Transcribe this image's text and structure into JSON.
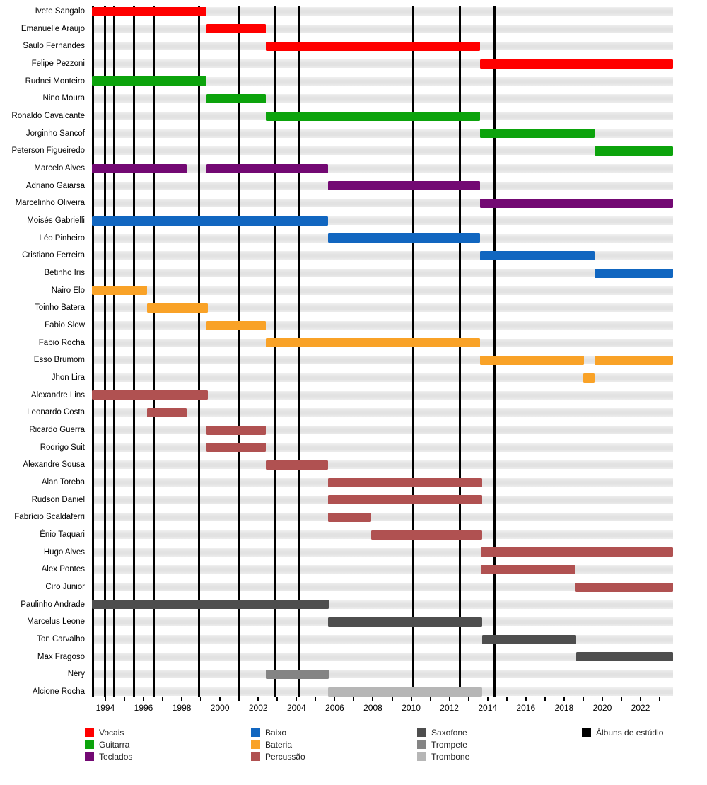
{
  "chart_data": {
    "type": "timeline",
    "title": "",
    "axis": {
      "start": 1993.3,
      "end": 2023.7,
      "label_years": [
        1994,
        1996,
        1998,
        2000,
        2002,
        2004,
        2006,
        2008,
        2010,
        2012,
        2014,
        2016,
        2018,
        2020,
        2022
      ],
      "minor_tick_first": 1994,
      "minor_tick_last": 2023,
      "grid": "horizontal-bands"
    },
    "album_lines_years": [
      1993.35,
      1994.0,
      1994.45,
      1995.5,
      1996.55,
      1998.9,
      2001.0,
      2002.9,
      2004.15,
      2010.1,
      2012.55,
      2014.35
    ],
    "roles": {
      "vocals": {
        "label": "Vocais",
        "color": "#ff0000"
      },
      "guitar": {
        "label": "Guitarra",
        "color": "#0ca30c"
      },
      "keyboards": {
        "label": "Teclados",
        "color": "#730973"
      },
      "bass": {
        "label": "Baixo",
        "color": "#1166c0"
      },
      "drums": {
        "label": "Bateria",
        "color": "#f9a227"
      },
      "percussion": {
        "label": "Percussão",
        "color": "#b05151"
      },
      "sax": {
        "label": "Saxofone",
        "color": "#4e4e4e"
      },
      "trumpet": {
        "label": "Trompete",
        "color": "#848484"
      },
      "trombone": {
        "label": "Trombone",
        "color": "#b6b6b6"
      },
      "albums": {
        "label": "Álbuns de estúdio",
        "color": "#000000"
      }
    },
    "members": [
      {
        "name": "Ivete Sangalo",
        "role": "vocals",
        "segments": [
          [
            1993.3,
            1999.3
          ]
        ]
      },
      {
        "name": "Emanuelle Araújo",
        "role": "vocals",
        "segments": [
          [
            1999.3,
            2002.4
          ]
        ]
      },
      {
        "name": "Saulo Fernandes",
        "role": "vocals",
        "segments": [
          [
            2002.4,
            2013.6
          ]
        ]
      },
      {
        "name": "Felipe Pezzoni",
        "role": "vocals",
        "segments": [
          [
            2013.6,
            2023.7
          ]
        ]
      },
      {
        "name": "Rudnei Monteiro",
        "role": "guitar",
        "segments": [
          [
            1993.3,
            1999.3
          ]
        ]
      },
      {
        "name": "Nino Moura",
        "role": "guitar",
        "segments": [
          [
            1999.3,
            2002.4
          ]
        ]
      },
      {
        "name": "Ronaldo Cavalcante",
        "role": "guitar",
        "segments": [
          [
            2002.4,
            2013.6
          ]
        ]
      },
      {
        "name": "Jorginho Sancof",
        "role": "guitar",
        "segments": [
          [
            2013.6,
            2019.6
          ]
        ]
      },
      {
        "name": "Peterson Figueiredo",
        "role": "guitar",
        "segments": [
          [
            2019.6,
            2023.7
          ]
        ]
      },
      {
        "name": "Marcelo Alves",
        "role": "keyboards",
        "segments": [
          [
            1993.3,
            1998.25
          ],
          [
            1999.3,
            2005.65
          ]
        ]
      },
      {
        "name": "Adriano Gaiarsa",
        "role": "keyboards",
        "segments": [
          [
            2005.65,
            2013.6
          ]
        ]
      },
      {
        "name": "Marcelinho Oliveira",
        "role": "keyboards",
        "segments": [
          [
            2013.6,
            2023.7
          ]
        ]
      },
      {
        "name": "Moisés Gabrielli",
        "role": "bass",
        "segments": [
          [
            1993.3,
            2005.65
          ]
        ]
      },
      {
        "name": "Léo Pinheiro",
        "role": "bass",
        "segments": [
          [
            2005.65,
            2013.6
          ]
        ]
      },
      {
        "name": "Cristiano Ferreira",
        "role": "bass",
        "segments": [
          [
            2013.6,
            2019.6
          ]
        ]
      },
      {
        "name": "Betinho Iris",
        "role": "bass",
        "segments": [
          [
            2019.6,
            2023.7
          ]
        ]
      },
      {
        "name": "Nairo Elo",
        "role": "drums",
        "segments": [
          [
            1993.3,
            1996.2
          ]
        ]
      },
      {
        "name": "Toinho Batera",
        "role": "drums",
        "segments": [
          [
            1996.2,
            1999.35
          ]
        ]
      },
      {
        "name": "Fabio Slow",
        "role": "drums",
        "segments": [
          [
            1999.3,
            2002.4
          ]
        ]
      },
      {
        "name": "Fabio Rocha",
        "role": "drums",
        "segments": [
          [
            2002.4,
            2013.6
          ]
        ]
      },
      {
        "name": "Esso Brumom",
        "role": "drums",
        "segments": [
          [
            2013.6,
            2019.05
          ],
          [
            2019.6,
            2023.7
          ]
        ]
      },
      {
        "name": "Jhon Lira",
        "role": "drums",
        "segments": [
          [
            2019.0,
            2019.6
          ]
        ]
      },
      {
        "name": "Alexandre Lins",
        "role": "percussion",
        "segments": [
          [
            1993.3,
            1999.35
          ]
        ]
      },
      {
        "name": "Leonardo Costa",
        "role": "percussion",
        "segments": [
          [
            1996.2,
            1998.25
          ]
        ]
      },
      {
        "name": "Ricardo Guerra",
        "role": "percussion",
        "segments": [
          [
            1999.3,
            2002.4
          ]
        ]
      },
      {
        "name": "Rodrigo Suit",
        "role": "percussion",
        "segments": [
          [
            1999.3,
            2002.4
          ]
        ]
      },
      {
        "name": "Alexandre Sousa",
        "role": "percussion",
        "segments": [
          [
            2002.4,
            2005.65
          ]
        ]
      },
      {
        "name": "Alan Toreba",
        "role": "percussion",
        "segments": [
          [
            2005.65,
            2013.7
          ]
        ]
      },
      {
        "name": "Rudson Daniel",
        "role": "percussion",
        "segments": [
          [
            2005.65,
            2013.7
          ]
        ]
      },
      {
        "name": "Fabrício Scaldaferri",
        "role": "percussion",
        "segments": [
          [
            2005.65,
            2007.9
          ]
        ]
      },
      {
        "name": "Ênio Taquari",
        "role": "percussion",
        "segments": [
          [
            2007.9,
            2013.7
          ]
        ]
      },
      {
        "name": "Hugo Alves",
        "role": "percussion",
        "segments": [
          [
            2013.65,
            2023.7
          ]
        ]
      },
      {
        "name": "Alex Pontes",
        "role": "percussion",
        "segments": [
          [
            2013.65,
            2018.6
          ]
        ]
      },
      {
        "name": "Ciro Junior",
        "role": "percussion",
        "segments": [
          [
            2018.6,
            2023.7
          ]
        ]
      },
      {
        "name": "Paulinho Andrade",
        "role": "sax",
        "segments": [
          [
            1993.3,
            2005.7
          ]
        ]
      },
      {
        "name": "Marcelus Leone",
        "role": "sax",
        "segments": [
          [
            2005.65,
            2013.7
          ]
        ]
      },
      {
        "name": "Ton Carvalho",
        "role": "sax",
        "segments": [
          [
            2013.7,
            2018.65
          ]
        ]
      },
      {
        "name": "Max Fragoso",
        "role": "sax",
        "segments": [
          [
            2018.65,
            2023.7
          ]
        ]
      },
      {
        "name": "Néry",
        "role": "trumpet",
        "segments": [
          [
            2002.4,
            2005.7
          ]
        ]
      },
      {
        "name": "Alcione Rocha",
        "role": "trombone",
        "segments": [
          [
            2005.65,
            2013.7
          ]
        ]
      }
    ],
    "legend_columns": [
      [
        "vocals",
        "guitar",
        "keyboards"
      ],
      [
        "bass",
        "drums",
        "percussion"
      ],
      [
        "sax",
        "trumpet",
        "trombone"
      ],
      [
        "albums"
      ]
    ]
  }
}
